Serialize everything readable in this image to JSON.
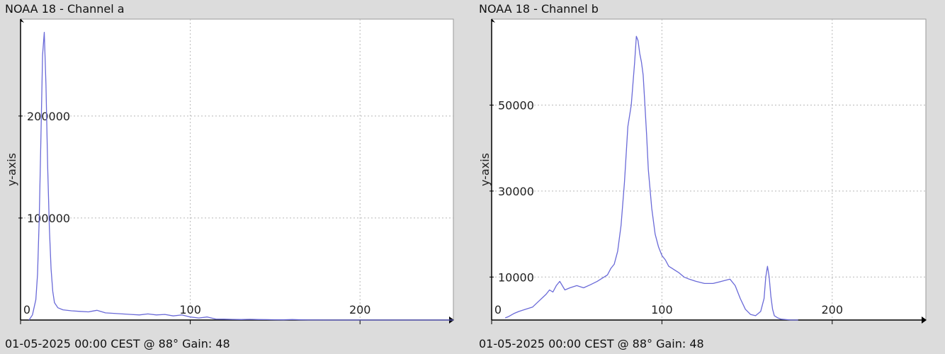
{
  "chart_data": [
    {
      "type": "line",
      "title": "NOAA 18 - Channel a",
      "footer": "01-05-2025 00:00 CEST @ 88° Gain: 48",
      "ylabel": "y-axis",
      "xlabel": "",
      "xlim": [
        0,
        255
      ],
      "ylim": [
        0,
        295000
      ],
      "grid": true,
      "line_color": "#6a6ad8",
      "xticks": [
        0,
        100,
        200
      ],
      "yticks": [
        100000,
        200000
      ],
      "xtick_labels": [
        "0",
        "100",
        "200"
      ],
      "ytick_labels": [
        "100000",
        "200000"
      ],
      "series": [
        {
          "x": [
            5,
            7,
            9,
            10,
            11,
            12,
            13,
            14,
            15,
            16,
            17,
            18,
            19,
            20,
            22,
            25,
            30,
            35,
            40,
            45,
            50,
            55,
            60,
            65,
            70,
            75,
            80,
            85,
            90,
            95,
            100,
            105,
            110,
            115,
            120,
            125,
            130,
            135,
            140,
            145,
            150,
            155,
            160,
            165,
            170,
            175,
            180,
            185,
            190,
            195,
            200,
            210,
            220,
            230,
            240,
            250,
            255
          ],
          "y": [
            0,
            5000,
            20000,
            45000,
            100000,
            180000,
            260000,
            282000,
            230000,
            150000,
            90000,
            50000,
            28000,
            17000,
            12000,
            10000,
            9000,
            8500,
            8000,
            9500,
            7000,
            6500,
            6000,
            5500,
            5000,
            6000,
            5000,
            5500,
            4000,
            5000,
            3000,
            2000,
            3000,
            1000,
            800,
            600,
            500,
            700,
            500,
            400,
            300,
            200,
            500,
            200,
            100,
            50,
            0,
            0,
            0,
            0,
            0,
            0,
            0,
            0,
            0,
            0,
            0
          ]
        }
      ]
    },
    {
      "type": "line",
      "title": "NOAA 18 - Channel b",
      "footer": "01-05-2025 00:00 CEST @ 88° Gain: 48",
      "ylabel": "y-axis",
      "xlabel": "",
      "xlim": [
        0,
        255
      ],
      "ylim": [
        0,
        70000
      ],
      "grid": true,
      "line_color": "#6a6ad8",
      "xticks": [
        0,
        100,
        200
      ],
      "yticks": [
        10000,
        30000,
        50000
      ],
      "xtick_labels": [
        "0",
        "100",
        "200"
      ],
      "ytick_labels": [
        "10000",
        "30000",
        "50000"
      ],
      "series": [
        {
          "x": [
            8,
            10,
            13,
            16,
            20,
            24,
            28,
            32,
            34,
            36,
            38,
            40,
            43,
            46,
            50,
            54,
            58,
            62,
            66,
            68,
            70,
            72,
            74,
            76,
            78,
            80,
            82,
            84,
            85,
            86,
            87,
            88,
            89,
            90,
            91,
            92,
            94,
            96,
            98,
            100,
            102,
            104,
            106,
            108,
            110,
            113,
            116,
            120,
            125,
            130,
            135,
            140,
            143,
            146,
            149,
            152,
            155,
            158,
            160,
            161,
            162,
            163,
            164,
            165,
            166,
            168,
            170,
            173,
            176,
            180
          ],
          "y": [
            500,
            800,
            1500,
            2000,
            2500,
            3000,
            4500,
            6000,
            7000,
            6500,
            8000,
            9000,
            7000,
            7500,
            8000,
            7500,
            8200,
            9000,
            10000,
            10500,
            12000,
            13000,
            16000,
            22000,
            32000,
            45000,
            50000,
            60000,
            66000,
            65000,
            62000,
            60000,
            57000,
            50000,
            43000,
            35000,
            26000,
            20000,
            17000,
            15000,
            14000,
            12500,
            12000,
            11500,
            11000,
            10000,
            9500,
            9000,
            8500,
            8500,
            9000,
            9500,
            8000,
            5000,
            2500,
            1300,
            1000,
            2000,
            5000,
            10000,
            12500,
            10000,
            5500,
            2500,
            1000,
            500,
            200,
            100,
            0,
            0
          ]
        }
      ]
    }
  ]
}
